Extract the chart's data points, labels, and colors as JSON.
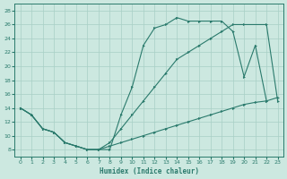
{
  "bg_color": "#cce8e0",
  "grid_color": "#a8cfc5",
  "line_color": "#2a7a6c",
  "xlabel": "Humidex (Indice chaleur)",
  "xlim": [
    -0.5,
    23.5
  ],
  "ylim": [
    7,
    29
  ],
  "xticks": [
    0,
    1,
    2,
    3,
    4,
    5,
    6,
    7,
    8,
    9,
    10,
    11,
    12,
    13,
    14,
    15,
    16,
    17,
    18,
    19,
    20,
    21,
    22,
    23
  ],
  "yticks": [
    8,
    10,
    12,
    14,
    16,
    18,
    20,
    22,
    24,
    26,
    28
  ],
  "curve_jagged_x": [
    0,
    1,
    2,
    3,
    4,
    5,
    6,
    7,
    8,
    9,
    10,
    11,
    12,
    13,
    14,
    15,
    16,
    17,
    18,
    19,
    20,
    21,
    22
  ],
  "curve_jagged_y": [
    14,
    13,
    11,
    10.5,
    9,
    8.5,
    8,
    8,
    8,
    13,
    17,
    23,
    25.5,
    26,
    27,
    26.5,
    26.5,
    26.5,
    26.5,
    25,
    18.5,
    23,
    15
  ],
  "curve_upper_x": [
    0,
    1,
    2,
    3,
    4,
    5,
    6,
    7,
    8,
    9,
    10,
    11,
    12,
    13,
    14,
    15,
    16,
    17,
    18,
    19,
    20,
    22,
    23
  ],
  "curve_upper_y": [
    14,
    13,
    11,
    10.5,
    9,
    8.5,
    8,
    8,
    9,
    11,
    13,
    15,
    17,
    19,
    21,
    22,
    23,
    24,
    25,
    26,
    26,
    26,
    15
  ],
  "curve_lower_x": [
    0,
    1,
    2,
    3,
    4,
    5,
    6,
    7,
    8,
    9,
    10,
    11,
    12,
    13,
    14,
    15,
    16,
    17,
    18,
    19,
    20,
    21,
    22,
    23
  ],
  "curve_lower_y": [
    14,
    13,
    11,
    10.5,
    9,
    8.5,
    8,
    8,
    8.5,
    9,
    9.5,
    10,
    10.5,
    11,
    11.5,
    12,
    12.5,
    13,
    13.5,
    14,
    14.5,
    14.8,
    15,
    15.5
  ]
}
